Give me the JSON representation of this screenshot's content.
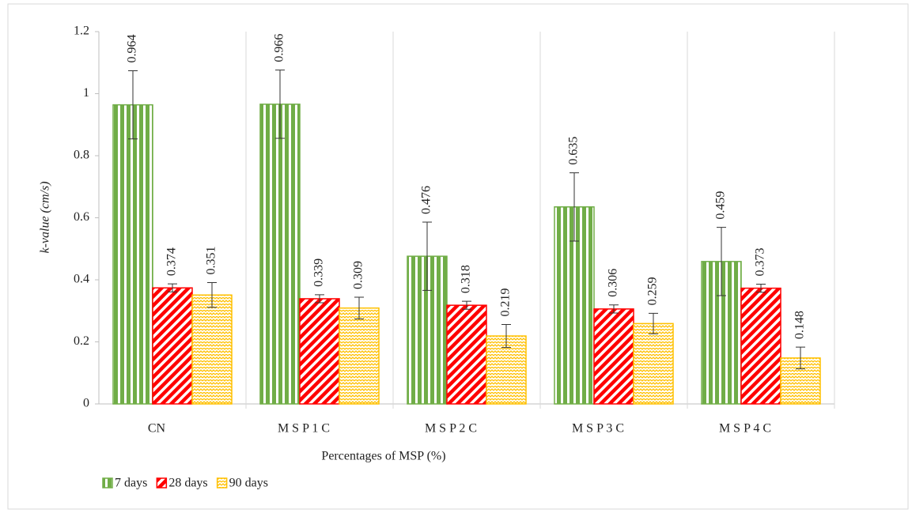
{
  "chart_data": {
    "type": "bar",
    "xlabel": "Percentages of MSP (%)",
    "ylabel": "k-value (cm/s)",
    "categories": [
      "CN",
      "M S P 1 C",
      "M S P 2 C",
      "M S P 3 C",
      "M S P 4 C"
    ],
    "series": [
      {
        "name": "7 days",
        "color": "#70ad47",
        "pattern": "vertical",
        "values": [
          0.964,
          0.966,
          0.476,
          0.635,
          0.459
        ],
        "errors": [
          0.11,
          0.11,
          0.11,
          0.11,
          0.11
        ]
      },
      {
        "name": "28 days",
        "color": "#ff0000",
        "pattern": "diagonal",
        "values": [
          0.374,
          0.339,
          0.318,
          0.306,
          0.373
        ],
        "errors": [
          0.013,
          0.013,
          0.013,
          0.013,
          0.013
        ]
      },
      {
        "name": "90 days",
        "color": "#ffc000",
        "pattern": "zigzag",
        "values": [
          0.351,
          0.309,
          0.219,
          0.259,
          0.148
        ],
        "errors": [
          0.04,
          0.035,
          0.037,
          0.033,
          0.035
        ]
      }
    ],
    "ylim": [
      0,
      1.2
    ],
    "yticks": [
      0,
      0.2,
      0.4,
      0.6,
      0.8,
      1,
      1.2
    ],
    "legend": "bottom-left"
  }
}
